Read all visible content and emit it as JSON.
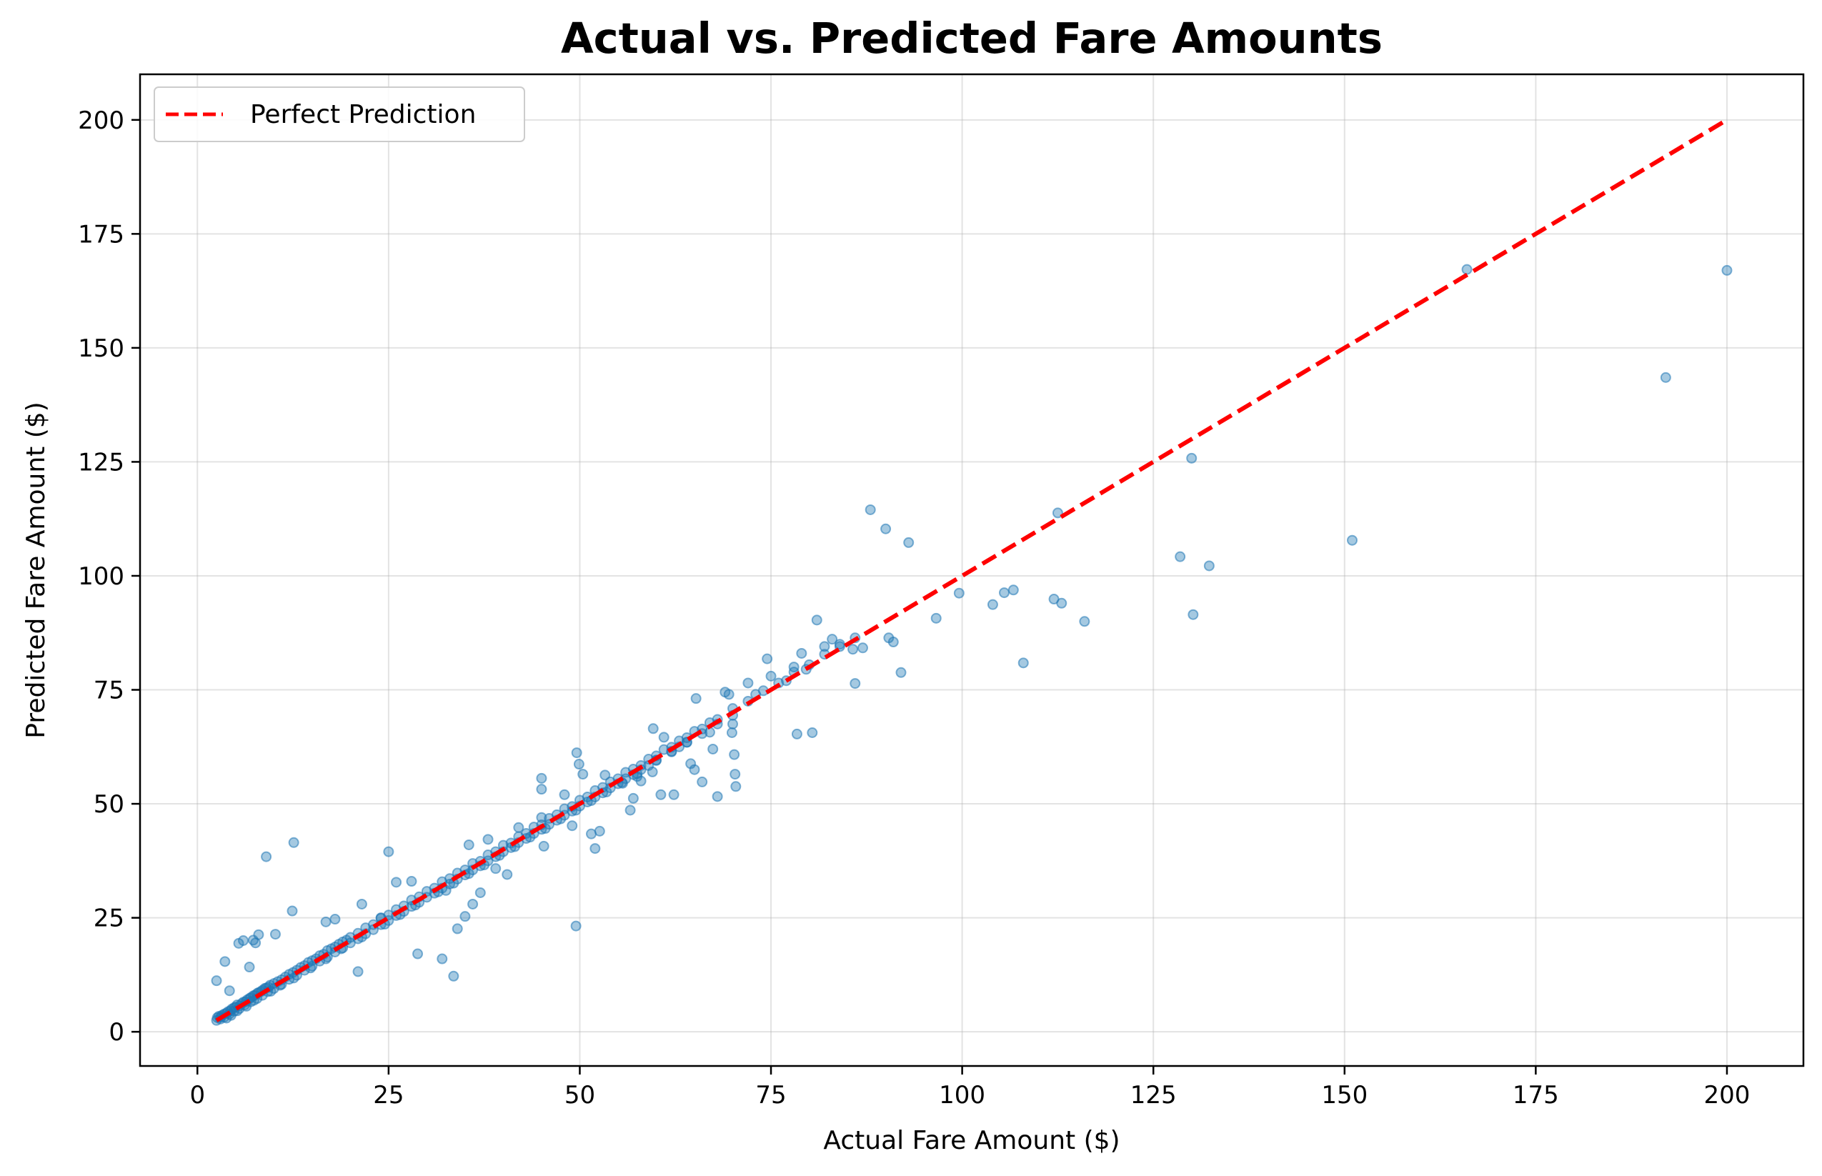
{
  "chart_data": {
    "type": "scatter",
    "title": "Actual vs. Predicted Fare Amounts",
    "xlabel": "Actual Fare Amount ($)",
    "ylabel": "Predicted Fare Amount ($)",
    "xlim": [
      -7.5,
      210
    ],
    "ylim": [
      -7.5,
      210
    ],
    "xticks": [
      0,
      25,
      50,
      75,
      100,
      125,
      150,
      175,
      200
    ],
    "yticks": [
      0,
      25,
      50,
      75,
      100,
      125,
      150,
      175,
      200
    ],
    "grid": true,
    "legend": {
      "placement": "top-left",
      "entries": [
        "Perfect Prediction"
      ]
    },
    "colors": {
      "points": "#1f77b4",
      "reference_line": "#ff0000"
    },
    "series": [
      {
        "kind": "scatter",
        "points": [
          [
            2.5,
            2.5
          ],
          [
            2.6,
            3.1
          ],
          [
            2.8,
            3.4
          ],
          [
            3,
            3.2
          ],
          [
            3.2,
            3.6
          ],
          [
            3.5,
            3.9
          ],
          [
            3.8,
            4.1
          ],
          [
            4,
            4.4
          ],
          [
            4.3,
            4.6
          ],
          [
            4.5,
            5
          ],
          [
            4.8,
            5.3
          ],
          [
            5,
            5.4
          ],
          [
            5.2,
            5.9
          ],
          [
            5.5,
            5.7
          ],
          [
            5.8,
            6.2
          ],
          [
            6,
            6.5
          ],
          [
            6.3,
            6.6
          ],
          [
            6.5,
            7
          ],
          [
            6.8,
            7.3
          ],
          [
            7,
            7.5
          ],
          [
            7.3,
            7.9
          ],
          [
            7.5,
            8
          ],
          [
            7.8,
            8.4
          ],
          [
            8,
            8.6
          ],
          [
            8.3,
            8.8
          ],
          [
            8.5,
            9.1
          ],
          [
            8.8,
            9.5
          ],
          [
            9,
            9.6
          ],
          [
            9.3,
            9.8
          ],
          [
            9.5,
            10.2
          ],
          [
            10,
            10.6
          ],
          [
            10.5,
            11
          ],
          [
            11,
            11.4
          ],
          [
            11.5,
            12
          ],
          [
            12,
            12.6
          ],
          [
            12.5,
            13
          ],
          [
            13,
            13.5
          ],
          [
            13.5,
            14.1
          ],
          [
            14,
            14.5
          ],
          [
            14.5,
            15.2
          ],
          [
            15,
            15.6
          ],
          [
            15.5,
            16
          ],
          [
            16,
            16.7
          ],
          [
            16.5,
            17
          ],
          [
            17,
            17.8
          ],
          [
            17.5,
            18.2
          ],
          [
            18,
            18.6
          ],
          [
            18.5,
            19.2
          ],
          [
            19,
            19.7
          ],
          [
            19.5,
            20.1
          ],
          [
            20,
            20.7
          ],
          [
            21,
            21.6
          ],
          [
            22,
            22.8
          ],
          [
            23,
            23.5
          ],
          [
            24,
            24.9
          ],
          [
            25,
            25.6
          ],
          [
            26,
            26.8
          ],
          [
            27,
            27.6
          ],
          [
            28,
            28.9
          ],
          [
            29,
            29.6
          ],
          [
            30,
            30.8
          ],
          [
            31,
            31.5
          ],
          [
            32,
            32.9
          ],
          [
            33,
            33.6
          ],
          [
            34,
            34.8
          ],
          [
            35,
            35.5
          ],
          [
            36,
            36.9
          ],
          [
            37,
            37.4
          ],
          [
            38,
            38.8
          ],
          [
            39,
            39.5
          ],
          [
            40,
            40.9
          ],
          [
            41,
            41.4
          ],
          [
            42,
            42.8
          ],
          [
            43,
            43.5
          ],
          [
            44,
            44.9
          ],
          [
            45,
            45.4
          ],
          [
            46,
            46.8
          ],
          [
            47,
            47.6
          ],
          [
            48,
            48.9
          ],
          [
            49,
            49.4
          ],
          [
            50,
            50.8
          ],
          [
            51,
            51.5
          ],
          [
            52,
            52.9
          ],
          [
            53,
            53.6
          ],
          [
            54,
            54.8
          ],
          [
            55,
            55.5
          ],
          [
            56,
            56.9
          ],
          [
            57,
            57.6
          ],
          [
            58,
            58.4
          ],
          [
            59,
            59.8
          ],
          [
            60,
            60.5
          ],
          [
            61,
            61.9
          ],
          [
            62,
            62.4
          ],
          [
            63,
            63.8
          ],
          [
            64,
            64.5
          ],
          [
            65,
            65.9
          ],
          [
            66,
            66.4
          ],
          [
            67,
            67.8
          ],
          [
            68,
            68.5
          ],
          [
            70,
            70.9
          ],
          [
            72,
            72.5
          ],
          [
            74,
            74.8
          ],
          [
            76,
            76.5
          ],
          [
            78,
            78.9
          ],
          [
            80,
            80.5
          ],
          [
            82,
            82.8
          ],
          [
            84,
            84.5
          ],
          [
            86,
            86.4
          ],
          [
            3,
            2.8
          ],
          [
            3.5,
            3.2
          ],
          [
            4.2,
            3.9
          ],
          [
            4.8,
            4.5
          ],
          [
            5.5,
            5.1
          ],
          [
            6.2,
            5.9
          ],
          [
            7,
            6.6
          ],
          [
            7.8,
            7.3
          ],
          [
            8.5,
            8
          ],
          [
            9.2,
            8.8
          ],
          [
            10,
            9.5
          ],
          [
            11,
            10.4
          ],
          [
            12,
            11.5
          ],
          [
            13,
            12.4
          ],
          [
            14,
            13.5
          ],
          [
            15,
            14.4
          ],
          [
            16,
            15.5
          ],
          [
            17,
            16.4
          ],
          [
            18,
            17.5
          ],
          [
            19,
            18.4
          ],
          [
            20,
            19.5
          ],
          [
            21,
            20.4
          ],
          [
            22,
            21.5
          ],
          [
            23,
            22.4
          ],
          [
            24,
            23.5
          ],
          [
            25,
            24.4
          ],
          [
            26,
            25.5
          ],
          [
            27,
            26.4
          ],
          [
            28,
            27.5
          ],
          [
            29,
            28.4
          ],
          [
            30,
            29.5
          ],
          [
            31,
            30.4
          ],
          [
            32,
            31.5
          ],
          [
            33,
            32.4
          ],
          [
            34,
            33.5
          ],
          [
            35,
            34.4
          ],
          [
            36,
            35.5
          ],
          [
            37,
            36.4
          ],
          [
            38,
            37.5
          ],
          [
            39,
            38.4
          ],
          [
            40,
            39.5
          ],
          [
            41,
            40.4
          ],
          [
            42,
            41.5
          ],
          [
            43,
            42.4
          ],
          [
            44,
            43.5
          ],
          [
            45,
            44.4
          ],
          [
            46,
            45.5
          ],
          [
            47,
            46.4
          ],
          [
            48,
            47.5
          ],
          [
            49,
            48.4
          ],
          [
            50,
            49.5
          ],
          [
            51,
            50.4
          ],
          [
            52,
            51.5
          ],
          [
            53,
            52.4
          ],
          [
            54,
            53.5
          ],
          [
            55,
            54.4
          ],
          [
            56,
            55.5
          ],
          [
            57,
            56.4
          ],
          [
            58,
            57.5
          ],
          [
            59,
            58.4
          ],
          [
            60,
            59.5
          ],
          [
            62,
            61.4
          ],
          [
            64,
            63.5
          ],
          [
            66,
            65.4
          ],
          [
            68,
            67.5
          ],
          [
            70,
            69.4
          ],
          [
            3.8,
            3
          ],
          [
            4.4,
            3.6
          ],
          [
            5.2,
            4.6
          ],
          [
            6.4,
            5.6
          ],
          [
            7.4,
            6.9
          ],
          [
            9.6,
            8.9
          ],
          [
            10.8,
            10.2
          ],
          [
            12.6,
            11.8
          ],
          [
            14.8,
            14
          ],
          [
            16.8,
            16
          ],
          [
            18.8,
            18.2
          ],
          [
            21.5,
            20.8
          ],
          [
            24.5,
            23.6
          ],
          [
            26.5,
            25.7
          ],
          [
            28.5,
            27.8
          ],
          [
            31.5,
            30.7
          ],
          [
            33.5,
            32.6
          ],
          [
            35.5,
            34.7
          ],
          [
            37.5,
            36.6
          ],
          [
            39.5,
            38.7
          ],
          [
            41.5,
            40.6
          ],
          [
            43.5,
            42.7
          ],
          [
            45.5,
            44.6
          ],
          [
            47.5,
            46.7
          ],
          [
            49.5,
            48.6
          ],
          [
            51.5,
            50.7
          ],
          [
            53.5,
            52.6
          ],
          [
            55.5,
            54.7
          ],
          [
            57.5,
            56.6
          ],
          [
            2.5,
            11.2
          ],
          [
            3.6,
            15.4
          ],
          [
            4.2,
            9
          ],
          [
            5.4,
            19.4
          ],
          [
            6,
            20
          ],
          [
            6.8,
            14.2
          ],
          [
            7.3,
            20.1
          ],
          [
            7.6,
            19.5
          ],
          [
            8,
            21.3
          ],
          [
            9,
            38.4
          ],
          [
            10.2,
            21.4
          ],
          [
            12.4,
            26.5
          ],
          [
            12.6,
            41.5
          ],
          [
            16.8,
            24.1
          ],
          [
            18,
            24.7
          ],
          [
            21,
            13.2
          ],
          [
            21.5,
            28
          ],
          [
            24,
            25
          ],
          [
            25,
            39.5
          ],
          [
            26,
            32.8
          ],
          [
            28,
            33
          ],
          [
            28.8,
            17.1
          ],
          [
            32,
            16
          ],
          [
            32.5,
            31
          ],
          [
            33.5,
            12.2
          ],
          [
            34,
            22.6
          ],
          [
            35,
            25.3
          ],
          [
            35.5,
            41
          ],
          [
            36,
            28
          ],
          [
            37,
            30.5
          ],
          [
            38,
            42.2
          ],
          [
            39,
            35.8
          ],
          [
            40.5,
            34.5
          ],
          [
            42,
            44.8
          ],
          [
            45,
            55.6
          ],
          [
            45,
            53.2
          ],
          [
            45,
            47
          ],
          [
            45.3,
            40.7
          ],
          [
            48,
            52
          ],
          [
            49,
            45.2
          ],
          [
            49.5,
            23.2
          ],
          [
            49.6,
            61.2
          ],
          [
            49.9,
            58.7
          ],
          [
            50.4,
            56.5
          ],
          [
            51.5,
            43.4
          ],
          [
            52,
            40.2
          ],
          [
            52.6,
            44
          ],
          [
            53.3,
            56.3
          ],
          [
            55.6,
            54.5
          ],
          [
            56.6,
            48.6
          ],
          [
            57,
            51.2
          ],
          [
            57.5,
            56
          ],
          [
            58,
            55
          ],
          [
            59.5,
            57
          ],
          [
            59.6,
            66.5
          ],
          [
            60,
            59.6
          ],
          [
            60.6,
            52
          ],
          [
            61,
            64.6
          ],
          [
            62,
            61.5
          ],
          [
            62.3,
            52
          ],
          [
            63,
            62.5
          ],
          [
            64,
            63.5
          ],
          [
            64.5,
            58.8
          ],
          [
            65,
            57.5
          ],
          [
            65.2,
            73.1
          ],
          [
            66,
            54.8
          ],
          [
            67,
            65.7
          ],
          [
            67.4,
            62
          ],
          [
            68,
            51.6
          ],
          [
            69,
            74.5
          ],
          [
            69.5,
            74
          ],
          [
            69.9,
            65.6
          ],
          [
            70,
            67.5
          ],
          [
            70.2,
            60.8
          ],
          [
            70.3,
            56.5
          ],
          [
            70.4,
            53.8
          ],
          [
            72,
            76.5
          ],
          [
            73,
            74
          ],
          [
            74.5,
            81.8
          ],
          [
            75,
            78
          ],
          [
            77,
            77
          ],
          [
            78,
            80
          ],
          [
            78.4,
            65.3
          ],
          [
            79,
            83
          ],
          [
            79.6,
            79.5
          ],
          [
            80.4,
            65.6
          ],
          [
            81,
            90.3
          ],
          [
            82,
            84.5
          ],
          [
            83,
            86.1
          ],
          [
            84,
            85
          ],
          [
            85.7,
            83.9
          ],
          [
            86,
            76.4
          ],
          [
            87,
            84.2
          ],
          [
            88,
            114.5
          ],
          [
            90,
            110.3
          ],
          [
            90.4,
            86.4
          ],
          [
            91,
            85.5
          ],
          [
            92,
            78.8
          ],
          [
            93,
            107.3
          ],
          [
            96.6,
            90.7
          ],
          [
            99.6,
            96.2
          ],
          [
            104,
            93.7
          ],
          [
            105.5,
            96.3
          ],
          [
            106.7,
            96.9
          ],
          [
            108,
            80.9
          ],
          [
            112,
            94.9
          ],
          [
            112.5,
            113.8
          ],
          [
            113,
            94
          ],
          [
            116,
            90
          ],
          [
            128.5,
            104.2
          ],
          [
            130,
            125.8
          ],
          [
            130.2,
            91.5
          ],
          [
            132.3,
            102.2
          ],
          [
            151,
            107.8
          ],
          [
            166,
            167.2
          ],
          [
            192,
            143.5
          ],
          [
            200,
            167
          ]
        ]
      },
      {
        "kind": "line",
        "name": "Perfect Prediction",
        "style": "dashed",
        "points": [
          [
            2.5,
            2.5
          ],
          [
            200,
            200
          ]
        ]
      }
    ]
  }
}
